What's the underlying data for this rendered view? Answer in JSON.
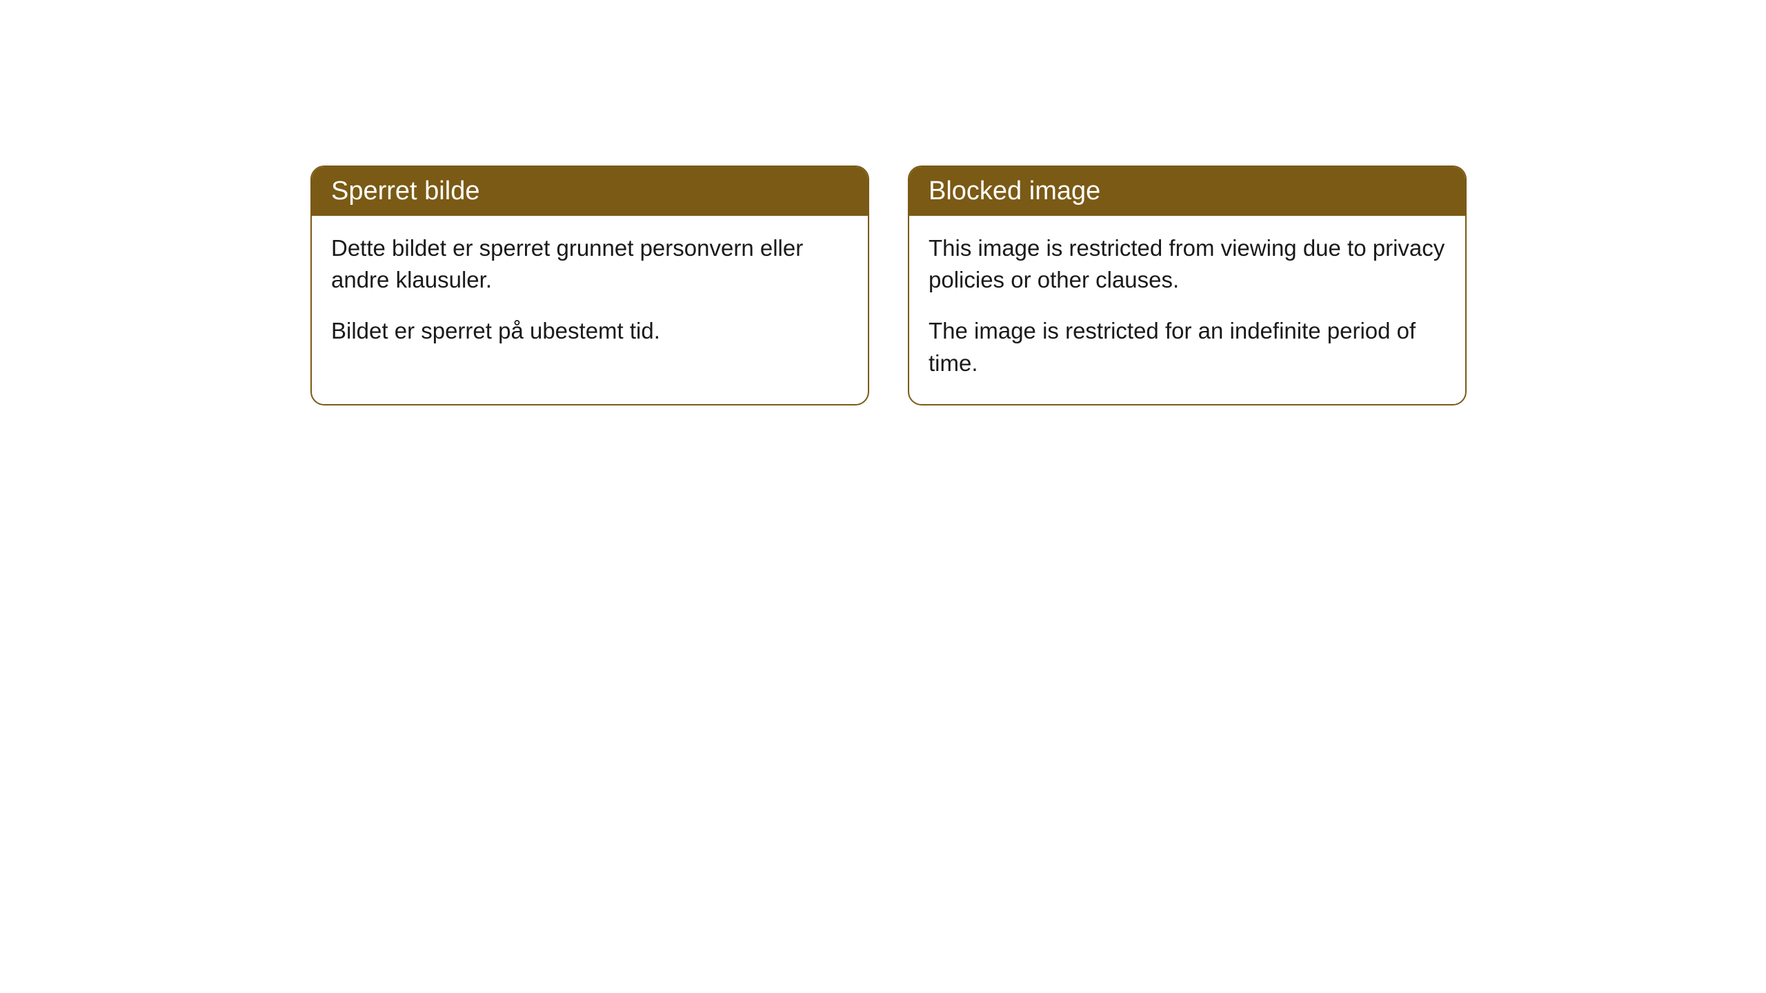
{
  "cards": [
    {
      "header": "Sperret bilde",
      "paragraph1": "Dette bildet er sperret grunnet personvern eller andre klausuler.",
      "paragraph2": "Bildet er sperret på ubestemt tid."
    },
    {
      "header": "Blocked image",
      "paragraph1": "This image is restricted from viewing due to privacy policies or other clauses.",
      "paragraph2": "The image is restricted for an indefinite period of time."
    }
  ],
  "style": {
    "header_bg_color": "#7a5a15",
    "header_text_color": "#ffffff",
    "border_color": "#7a5a15",
    "card_bg_color": "#ffffff",
    "body_text_color": "#1a1a1a",
    "border_radius": 20,
    "header_fontsize": 38,
    "body_fontsize": 33
  }
}
